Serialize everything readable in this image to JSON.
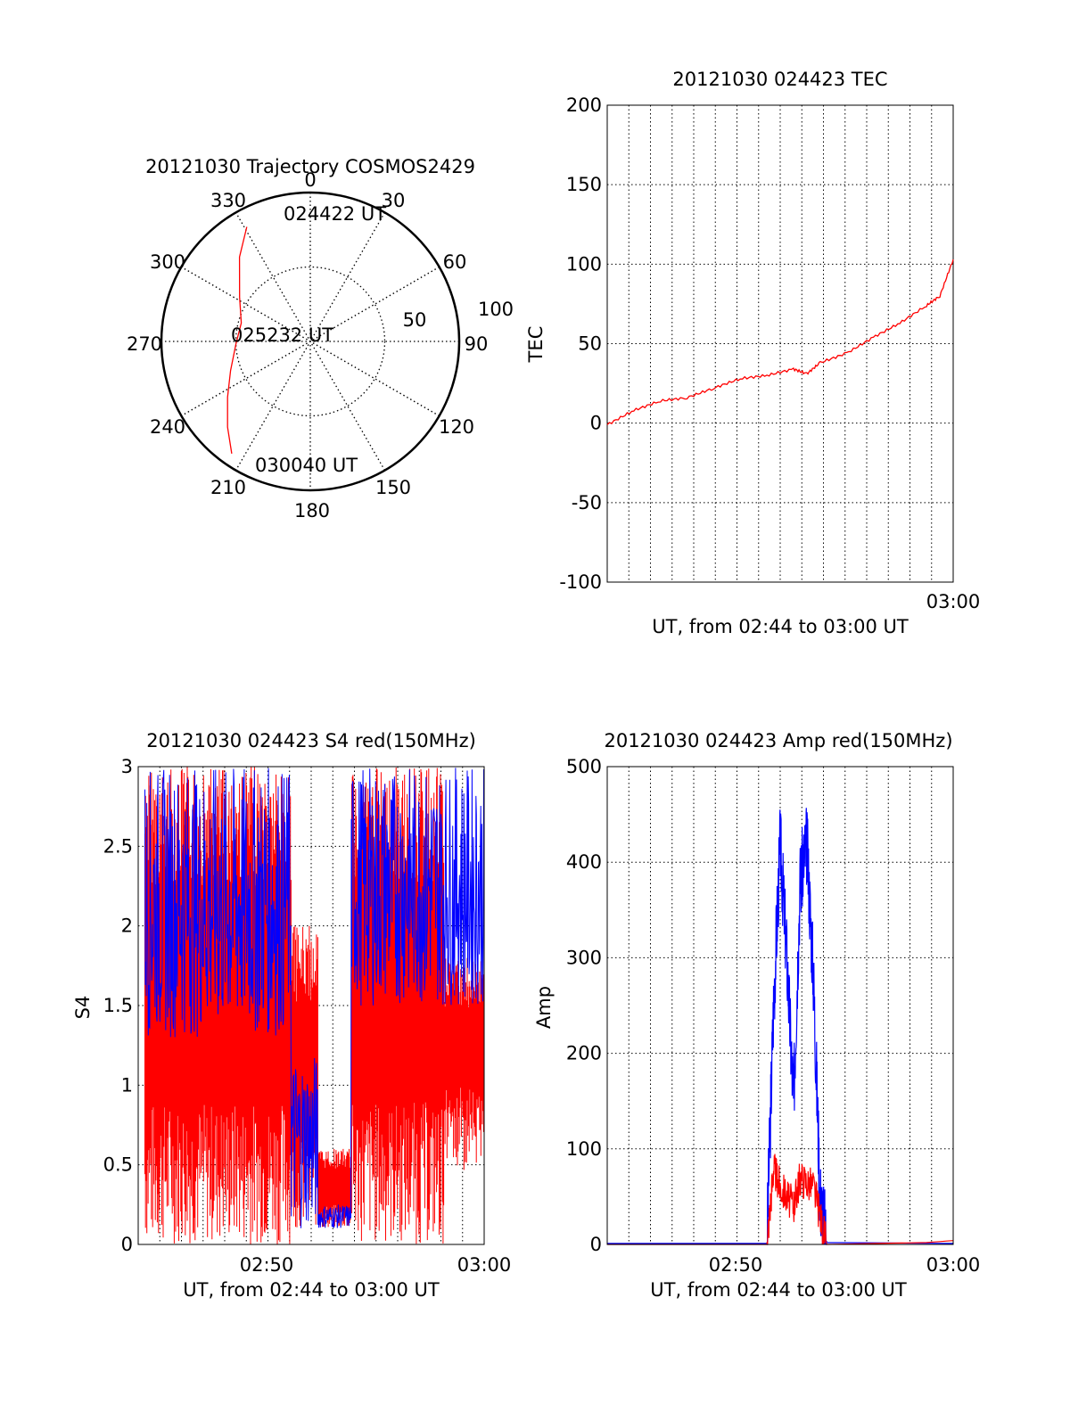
{
  "colors": {
    "red": "#ff0000",
    "blue": "#0000ff",
    "axis": "#000000",
    "grid": "#000000"
  },
  "chart_data": [
    {
      "id": "trajectory",
      "type": "polar",
      "title": "20121030 Trajectory COSMOS2429",
      "angle_labels": [
        "0",
        "30",
        "60",
        "90",
        "120",
        "150",
        "180",
        "210",
        "240",
        "270",
        "300",
        "330"
      ],
      "radial_labels": [
        "50",
        "100"
      ],
      "rlim": [
        0,
        100
      ],
      "series": [
        {
          "color": "red",
          "points": [
            [
              331,
              88
            ],
            [
              320,
              74
            ],
            [
              302,
              56
            ],
            [
              285,
              48
            ],
            [
              268,
              50
            ],
            [
              250,
              57
            ],
            [
              236,
              67
            ],
            [
              224,
              80
            ],
            [
              215,
              92
            ]
          ]
        }
      ],
      "annotations": [
        {
          "text": "024422 UT",
          "az": 12,
          "r": 83
        },
        {
          "text": "025232 UT",
          "az": 0,
          "r": 0
        },
        {
          "text": "030040 UT",
          "az": 200,
          "r": 82
        }
      ]
    },
    {
      "id": "tec",
      "type": "line",
      "title": "20121030 024423 TEC",
      "xlabel": "UT, from 02:44 to 03:00 UT",
      "ylabel": "TEC",
      "xlim": [
        2.74,
        3.0
      ],
      "ylim": [
        -100,
        200
      ],
      "yticks": [
        "200",
        "150",
        "100",
        "50",
        "0",
        "-50",
        "-100"
      ],
      "xticks": [
        "03:00"
      ],
      "grid": true,
      "series": [
        {
          "color": "red",
          "points": [
            [
              2.74,
              -1
            ],
            [
              2.76,
              8
            ],
            [
              2.78,
              14
            ],
            [
              2.8,
              16
            ],
            [
              2.82,
              22
            ],
            [
              2.84,
              28
            ],
            [
              2.86,
              30
            ],
            [
              2.88,
              34
            ],
            [
              2.89,
              31
            ],
            [
              2.9,
              38
            ],
            [
              2.92,
              44
            ],
            [
              2.94,
              54
            ],
            [
              2.96,
              63
            ],
            [
              2.98,
              74
            ],
            [
              2.99,
              80
            ],
            [
              3.0,
              103
            ]
          ]
        }
      ]
    },
    {
      "id": "s4",
      "type": "line",
      "title": "20121030 024423 S4 red(150MHz)",
      "xlabel": "UT, from 02:44 to 03:00 UT",
      "ylabel": "S4",
      "xlim": [
        2.74,
        3.0
      ],
      "ylim": [
        0,
        3
      ],
      "yticks": [
        "3",
        "2.5",
        "2",
        "1.5",
        "1",
        "0.5",
        "0"
      ],
      "xticks": [
        "02:50",
        "03:00"
      ],
      "grid": true,
      "series": [
        {
          "color": "red",
          "note_values": "noisy S4 values spanning 0 to 3, low (0.1-0.2) around 02:53-02:55"
        },
        {
          "color": "blue",
          "note_values": "noisy S4 values mostly 1.3-3, low (0.1-0.2) around 02:53-02:55"
        }
      ]
    },
    {
      "id": "amp",
      "type": "line",
      "title": "20121030 024423 Amp red(150MHz)",
      "xlabel": "UT, from 02:44 to 03:00 UT",
      "ylabel": "Amp",
      "xlim": [
        2.74,
        3.0
      ],
      "ylim": [
        0,
        500
      ],
      "yticks": [
        "500",
        "400",
        "300",
        "200",
        "100",
        "0"
      ],
      "xticks": [
        "02:50",
        "03:00"
      ],
      "grid": true,
      "series": [
        {
          "color": "blue",
          "points": [
            [
              2.74,
              1
            ],
            [
              2.86,
              1
            ],
            [
              2.865,
              250
            ],
            [
              2.87,
              420
            ],
            [
              2.875,
              300
            ],
            [
              2.88,
              150
            ],
            [
              2.885,
              380
            ],
            [
              2.89,
              420
            ],
            [
              2.895,
              280
            ],
            [
              2.9,
              50
            ],
            [
              2.905,
              2
            ],
            [
              3.0,
              1
            ]
          ]
        },
        {
          "color": "red",
          "points": [
            [
              2.74,
              0
            ],
            [
              2.86,
              0
            ],
            [
              2.865,
              80
            ],
            [
              2.87,
              60
            ],
            [
              2.88,
              40
            ],
            [
              2.885,
              70
            ],
            [
              2.895,
              60
            ],
            [
              2.905,
              0
            ],
            [
              2.98,
              2
            ],
            [
              3.0,
              4
            ]
          ]
        }
      ]
    }
  ]
}
